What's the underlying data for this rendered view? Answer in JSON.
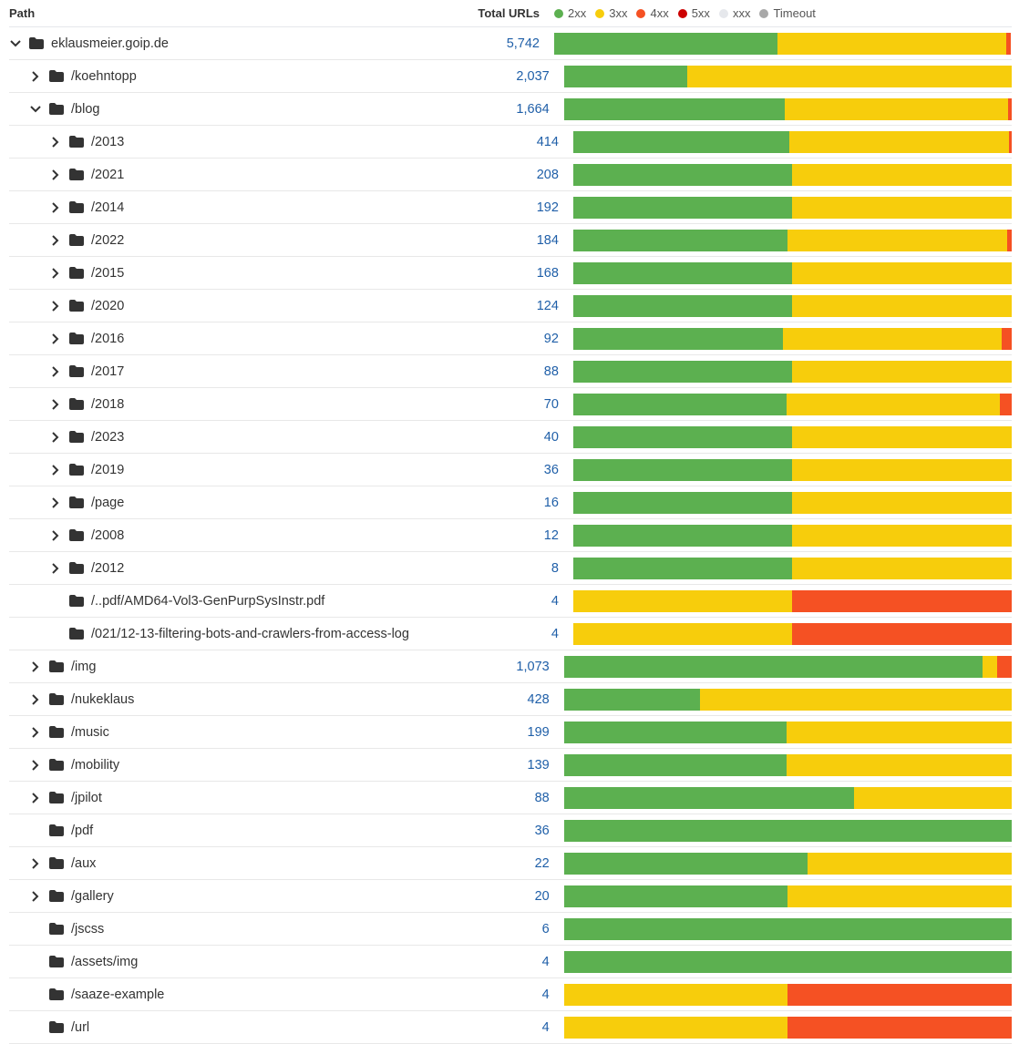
{
  "header": {
    "path_label": "Path",
    "total_label": "Total URLs",
    "legend": [
      {
        "label": "2xx",
        "color": "#5cb050"
      },
      {
        "label": "3xx",
        "color": "#f7cd0c"
      },
      {
        "label": "4xx",
        "color": "#f55123"
      },
      {
        "label": "5xx",
        "color": "#cc0000"
      },
      {
        "label": "xxx",
        "color": "#e6e8ec"
      },
      {
        "label": "Timeout",
        "color": "#a8a8a8"
      }
    ]
  },
  "rows": [
    {
      "path": "eklausmeier.goip.de",
      "total": "5,742",
      "level": 0,
      "toggle": "expanded",
      "dist": [
        0.49,
        0.5,
        0.01
      ]
    },
    {
      "path": "/koehntopp",
      "total": "2,037",
      "level": 1,
      "toggle": "collapsed",
      "dist": [
        0.275,
        0.725,
        0
      ]
    },
    {
      "path": "/blog",
      "total": "1,664",
      "level": 1,
      "toggle": "expanded",
      "dist": [
        0.493,
        0.499,
        0.008
      ]
    },
    {
      "path": "/2013",
      "total": "414",
      "level": 2,
      "toggle": "collapsed",
      "dist": [
        0.493,
        0.501,
        0.006
      ]
    },
    {
      "path": "/2021",
      "total": "208",
      "level": 2,
      "toggle": "collapsed",
      "dist": [
        0.5,
        0.5,
        0
      ]
    },
    {
      "path": "/2014",
      "total": "192",
      "level": 2,
      "toggle": "collapsed",
      "dist": [
        0.5,
        0.5,
        0
      ]
    },
    {
      "path": "/2022",
      "total": "184",
      "level": 2,
      "toggle": "collapsed",
      "dist": [
        0.489,
        0.5,
        0.011
      ]
    },
    {
      "path": "/2015",
      "total": "168",
      "level": 2,
      "toggle": "collapsed",
      "dist": [
        0.5,
        0.5,
        0
      ]
    },
    {
      "path": "/2020",
      "total": "124",
      "level": 2,
      "toggle": "collapsed",
      "dist": [
        0.5,
        0.5,
        0
      ]
    },
    {
      "path": "/2016",
      "total": "92",
      "level": 2,
      "toggle": "collapsed",
      "dist": [
        0.478,
        0.5,
        0.022
      ]
    },
    {
      "path": "/2017",
      "total": "88",
      "level": 2,
      "toggle": "collapsed",
      "dist": [
        0.5,
        0.5,
        0
      ]
    },
    {
      "path": "/2018",
      "total": "70",
      "level": 2,
      "toggle": "collapsed",
      "dist": [
        0.486,
        0.486,
        0.028
      ]
    },
    {
      "path": "/2023",
      "total": "40",
      "level": 2,
      "toggle": "collapsed",
      "dist": [
        0.5,
        0.5,
        0
      ]
    },
    {
      "path": "/2019",
      "total": "36",
      "level": 2,
      "toggle": "collapsed",
      "dist": [
        0.5,
        0.5,
        0
      ]
    },
    {
      "path": "/page",
      "total": "16",
      "level": 2,
      "toggle": "collapsed",
      "dist": [
        0.5,
        0.5,
        0
      ]
    },
    {
      "path": "/2008",
      "total": "12",
      "level": 2,
      "toggle": "collapsed",
      "dist": [
        0.5,
        0.5,
        0
      ]
    },
    {
      "path": "/2012",
      "total": "8",
      "level": 2,
      "toggle": "collapsed",
      "dist": [
        0.5,
        0.5,
        0
      ]
    },
    {
      "path": "/..pdf/AMD64-Vol3-GenPurpSysInstr.pdf",
      "total": "4",
      "level": 2,
      "toggle": "none",
      "dist": [
        0,
        0.5,
        0.5
      ]
    },
    {
      "path": "/021/12-13-filtering-bots-and-crawlers-from-access-log",
      "total": "4",
      "level": 2,
      "toggle": "none",
      "dist": [
        0,
        0.5,
        0.5
      ]
    },
    {
      "path": "/img",
      "total": "1,073",
      "level": 1,
      "toggle": "collapsed",
      "dist": [
        0.935,
        0.032,
        0.033
      ]
    },
    {
      "path": "/nukeklaus",
      "total": "428",
      "level": 1,
      "toggle": "collapsed",
      "dist": [
        0.304,
        0.696,
        0
      ]
    },
    {
      "path": "/music",
      "total": "199",
      "level": 1,
      "toggle": "collapsed",
      "dist": [
        0.497,
        0.503,
        0
      ]
    },
    {
      "path": "/mobility",
      "total": "139",
      "level": 1,
      "toggle": "collapsed",
      "dist": [
        0.497,
        0.503,
        0
      ]
    },
    {
      "path": "/jpilot",
      "total": "88",
      "level": 1,
      "toggle": "collapsed",
      "dist": [
        0.648,
        0.352,
        0
      ]
    },
    {
      "path": "/pdf",
      "total": "36",
      "level": 1,
      "toggle": "none",
      "dist": [
        1,
        0,
        0
      ]
    },
    {
      "path": "/aux",
      "total": "22",
      "level": 1,
      "toggle": "collapsed",
      "dist": [
        0.545,
        0.455,
        0
      ]
    },
    {
      "path": "/gallery",
      "total": "20",
      "level": 1,
      "toggle": "collapsed",
      "dist": [
        0.5,
        0.5,
        0
      ]
    },
    {
      "path": "/jscss",
      "total": "6",
      "level": 1,
      "toggle": "none",
      "dist": [
        1,
        0,
        0
      ]
    },
    {
      "path": "/assets/img",
      "total": "4",
      "level": 1,
      "toggle": "none",
      "dist": [
        1,
        0,
        0
      ]
    },
    {
      "path": "/saaze-example",
      "total": "4",
      "level": 1,
      "toggle": "none",
      "dist": [
        0,
        0.5,
        0.5
      ]
    },
    {
      "path": "/url",
      "total": "4",
      "level": 1,
      "toggle": "none",
      "dist": [
        0,
        0.5,
        0.5
      ]
    }
  ]
}
